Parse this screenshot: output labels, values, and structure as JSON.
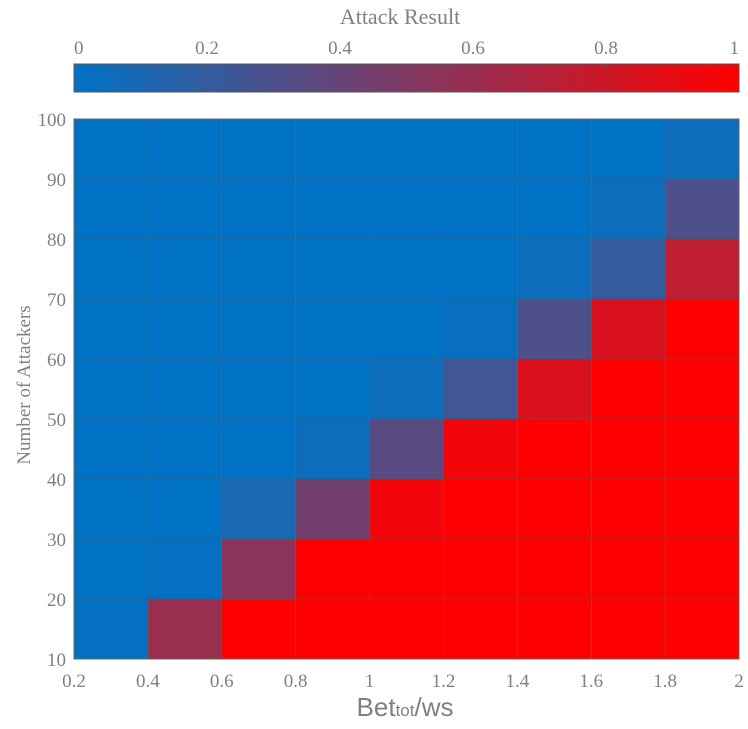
{
  "chart_data": {
    "type": "heatmap",
    "colorbar": {
      "title": "Attack Result",
      "ticks": [
        "0",
        "0.2",
        "0.4",
        "0.6",
        "0.8",
        "1"
      ],
      "range": [
        0,
        1
      ],
      "colors": {
        "low": "#0072c6",
        "high": "#ff0000"
      }
    },
    "xlabel": {
      "main": "Bet",
      "sub": "tot",
      "suffix": "/ws"
    },
    "ylabel": "Number of Attackers",
    "x_ticks": [
      "0.2",
      "0.4",
      "0.6",
      "0.8",
      "1",
      "1.2",
      "1.4",
      "1.6",
      "1.8",
      "2"
    ],
    "y_ticks": [
      "10",
      "20",
      "30",
      "40",
      "50",
      "60",
      "70",
      "80",
      "90",
      "100"
    ],
    "xlim": [
      0.2,
      2
    ],
    "ylim": [
      10,
      100
    ],
    "x_edges": [
      0.2,
      0.4,
      0.6,
      0.8,
      1.0,
      1.2,
      1.4,
      1.6,
      1.8,
      2.0
    ],
    "y_edges": [
      10,
      20,
      30,
      40,
      50,
      60,
      70,
      80,
      90,
      100
    ],
    "values_rows_top_to_bottom": [
      [
        0,
        0,
        0,
        0,
        0,
        0,
        0,
        0,
        0.05
      ],
      [
        0,
        0,
        0,
        0,
        0,
        0,
        0,
        0.05,
        0.3
      ],
      [
        0,
        0,
        0,
        0,
        0,
        0,
        0.05,
        0.2,
        0.75
      ],
      [
        0,
        0,
        0,
        0,
        0,
        0.03,
        0.3,
        0.85,
        1
      ],
      [
        0,
        0,
        0,
        0,
        0.05,
        0.25,
        0.85,
        1,
        1
      ],
      [
        0,
        0,
        0,
        0.05,
        0.35,
        0.95,
        1,
        1,
        1
      ],
      [
        0,
        0,
        0.1,
        0.45,
        0.95,
        1,
        1,
        1,
        1
      ],
      [
        0,
        0.02,
        0.55,
        1,
        1,
        1,
        1,
        1,
        1
      ],
      [
        0.02,
        0.6,
        1,
        1,
        1,
        1,
        1,
        1,
        1
      ]
    ],
    "grid": true
  }
}
